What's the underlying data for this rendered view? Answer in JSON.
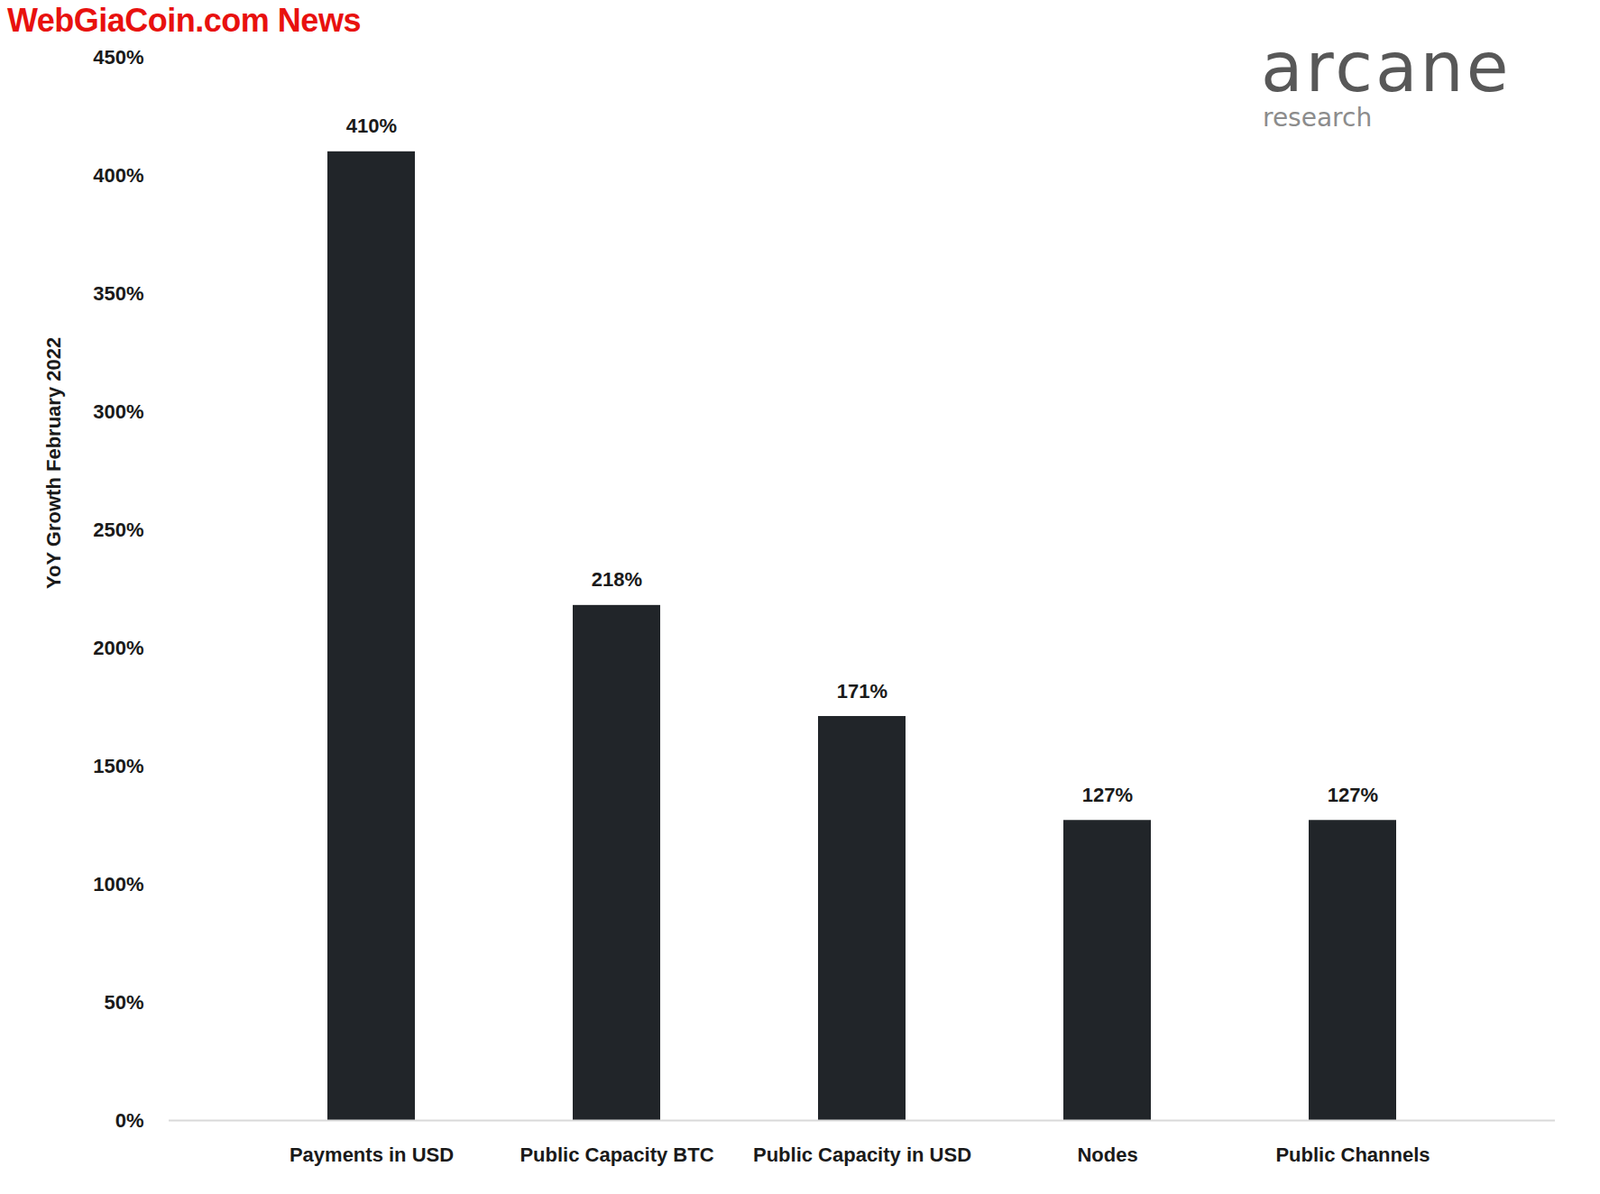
{
  "chart_data": {
    "type": "bar",
    "y_label": "YoY Growth February 2022",
    "categories": [
      "Payments in USD",
      "Public Capacity BTC",
      "Public Capacity in USD",
      "Nodes",
      "Public Channels"
    ],
    "values": [
      410,
      218,
      171,
      127,
      127
    ],
    "value_labels": [
      "410%",
      "218%",
      "171%",
      "127%",
      "127%"
    ],
    "data_labels": true,
    "color": "#212529",
    "ylim": [
      0,
      450
    ],
    "yticks": [
      {
        "value": 0,
        "label": "0%"
      },
      {
        "value": 50,
        "label": "50%"
      },
      {
        "value": 100,
        "label": "100%"
      },
      {
        "value": 150,
        "label": "150%"
      },
      {
        "value": 200,
        "label": "200%"
      },
      {
        "value": 250,
        "label": "250%"
      },
      {
        "value": 300,
        "label": "300%"
      },
      {
        "value": 350,
        "label": "350%"
      },
      {
        "value": 400,
        "label": "400%"
      },
      {
        "value": 450,
        "label": "450%"
      }
    ],
    "grid": false,
    "annotations": [
      "WebGiaCoin.com News",
      "arcane",
      "research"
    ]
  }
}
